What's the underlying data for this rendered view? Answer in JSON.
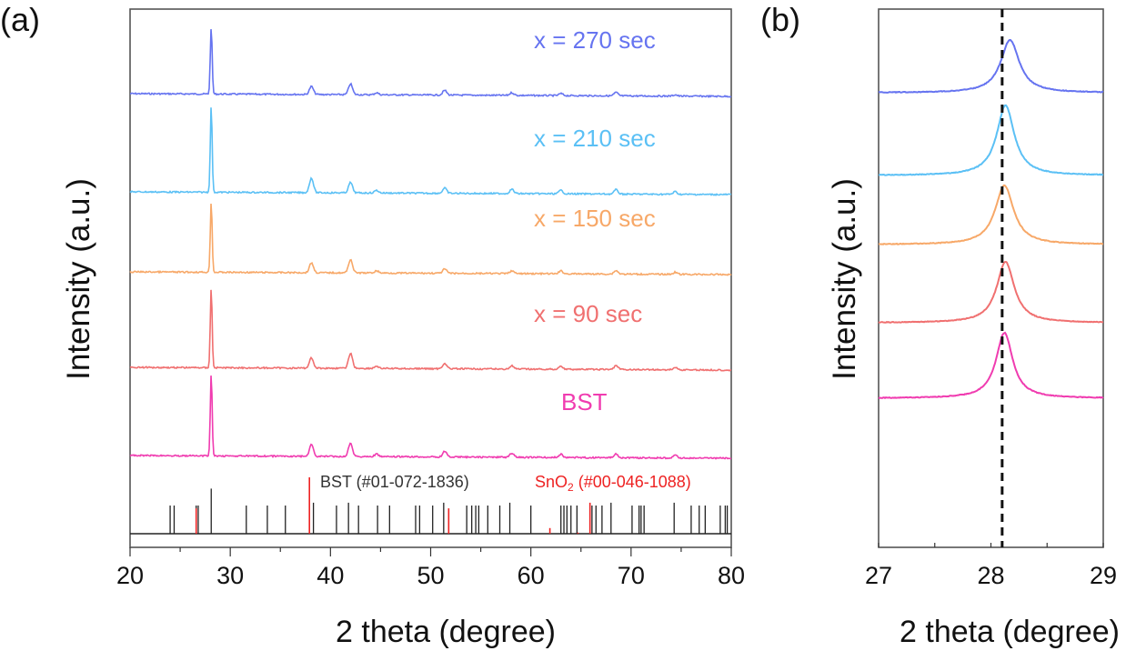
{
  "chart_data": [
    {
      "panel_label": "(a)",
      "type": "line",
      "title": "",
      "xlabel": "2 theta (degree)",
      "ylabel": "Intensity (a.u.)",
      "xlim": [
        20,
        80
      ],
      "xticks": [
        20,
        30,
        40,
        50,
        60,
        70,
        80
      ],
      "grid": false,
      "layout": "stacked-offset",
      "series": [
        {
          "name": "x = 270 sec",
          "color": "#6674f0",
          "peaks": [
            [
              28.1,
              1.0
            ],
            [
              38.1,
              0.12
            ],
            [
              42.0,
              0.16
            ],
            [
              44.6,
              0.03
            ],
            [
              51.4,
              0.07
            ],
            [
              58.1,
              0.04
            ],
            [
              63.0,
              0.03
            ],
            [
              68.5,
              0.05
            ],
            [
              74.4,
              0.02
            ]
          ]
        },
        {
          "name": "x = 210 sec",
          "color": "#5bc0f5",
          "peaks": [
            [
              28.1,
              1.0
            ],
            [
              38.1,
              0.17
            ],
            [
              42.0,
              0.12
            ],
            [
              44.6,
              0.03
            ],
            [
              51.4,
              0.06
            ],
            [
              58.1,
              0.05
            ],
            [
              63.0,
              0.04
            ],
            [
              68.5,
              0.05
            ],
            [
              74.4,
              0.03
            ]
          ]
        },
        {
          "name": "x = 150 sec",
          "color": "#f7a868",
          "peaks": [
            [
              28.1,
              1.0
            ],
            [
              38.1,
              0.14
            ],
            [
              42.0,
              0.19
            ],
            [
              44.6,
              0.03
            ],
            [
              51.4,
              0.06
            ],
            [
              58.1,
              0.04
            ],
            [
              63.0,
              0.04
            ],
            [
              68.5,
              0.05
            ],
            [
              74.4,
              0.03
            ]
          ]
        },
        {
          "name": "x = 90 sec",
          "color": "#f07070",
          "peaks": [
            [
              28.1,
              1.0
            ],
            [
              38.1,
              0.13
            ],
            [
              42.0,
              0.19
            ],
            [
              44.6,
              0.03
            ],
            [
              51.4,
              0.07
            ],
            [
              58.1,
              0.04
            ],
            [
              63.0,
              0.04
            ],
            [
              68.5,
              0.05
            ],
            [
              74.4,
              0.03
            ]
          ]
        },
        {
          "name": "BST",
          "color": "#f03cb0",
          "peaks": [
            [
              28.1,
              1.0
            ],
            [
              38.1,
              0.14
            ],
            [
              42.0,
              0.17
            ],
            [
              44.6,
              0.03
            ],
            [
              51.4,
              0.07
            ],
            [
              58.1,
              0.05
            ],
            [
              63.0,
              0.04
            ],
            [
              68.5,
              0.05
            ],
            [
              74.4,
              0.03
            ]
          ]
        }
      ],
      "reference_patterns": [
        {
          "name": "BST (#01-072-1836)",
          "color": "#222222",
          "lines": [
            [
              24.0,
              0.5
            ],
            [
              24.4,
              0.5
            ],
            [
              26.6,
              0.5
            ],
            [
              26.8,
              0.5
            ],
            [
              28.1,
              0.8
            ],
            [
              31.6,
              0.5
            ],
            [
              33.7,
              0.5
            ],
            [
              35.5,
              0.5
            ],
            [
              38.3,
              0.55
            ],
            [
              40.6,
              0.5
            ],
            [
              41.8,
              0.55
            ],
            [
              42.8,
              0.5
            ],
            [
              44.7,
              0.5
            ],
            [
              45.9,
              0.5
            ],
            [
              48.5,
              0.5
            ],
            [
              48.9,
              0.5
            ],
            [
              50.2,
              0.5
            ],
            [
              51.3,
              0.55
            ],
            [
              53.6,
              0.5
            ],
            [
              54.1,
              0.5
            ],
            [
              54.5,
              0.5
            ],
            [
              54.8,
              0.5
            ],
            [
              55.7,
              0.5
            ],
            [
              56.9,
              0.5
            ],
            [
              57.9,
              0.55
            ],
            [
              60.0,
              0.5
            ],
            [
              63.0,
              0.5
            ],
            [
              63.3,
              0.5
            ],
            [
              63.6,
              0.5
            ],
            [
              64.0,
              0.5
            ],
            [
              64.6,
              0.5
            ],
            [
              66.1,
              0.5
            ],
            [
              66.5,
              0.5
            ],
            [
              67.1,
              0.5
            ],
            [
              68.0,
              0.55
            ],
            [
              70.1,
              0.5
            ],
            [
              70.8,
              0.5
            ],
            [
              71.0,
              0.5
            ],
            [
              71.3,
              0.5
            ],
            [
              74.3,
              0.55
            ],
            [
              76.0,
              0.5
            ],
            [
              76.8,
              0.5
            ],
            [
              77.4,
              0.5
            ],
            [
              78.9,
              0.5
            ],
            [
              79.4,
              0.5
            ],
            [
              79.6,
              0.5
            ]
          ]
        },
        {
          "name": "SnO2 (#00-046-1088)",
          "color": "#ee2222",
          "lines": [
            [
              26.6,
              0.45
            ],
            [
              37.9,
              1.0
            ],
            [
              51.8,
              0.45
            ],
            [
              61.9,
              0.1
            ],
            [
              64.7,
              0.02
            ],
            [
              65.9,
              0.55
            ]
          ]
        }
      ],
      "annotations": [
        "x = 270 sec",
        "x = 210 sec",
        "x = 150 sec",
        "x = 90 sec",
        "BST",
        "BST (#01-072-1836)",
        "SnO2 (#00-046-1088)"
      ]
    },
    {
      "panel_label": "(b)",
      "type": "line",
      "title": "",
      "xlabel": "2 theta (degree)",
      "ylabel": "Intensity (a.u.)",
      "xlim": [
        27,
        29
      ],
      "xticks": [
        27,
        28,
        29
      ],
      "grid": false,
      "reference_line": {
        "x": 28.1,
        "style": "dashed",
        "color": "#111111"
      },
      "series": [
        {
          "name": "x = 270 sec",
          "color": "#6674f0",
          "peak_center": 28.17,
          "fwhm": 0.2
        },
        {
          "name": "x = 210 sec",
          "color": "#5bc0f5",
          "peak_center": 28.13,
          "fwhm": 0.19
        },
        {
          "name": "x = 150 sec",
          "color": "#f7a868",
          "peak_center": 28.12,
          "fwhm": 0.2
        },
        {
          "name": "x = 90 sec",
          "color": "#f07070",
          "peak_center": 28.13,
          "fwhm": 0.19
        },
        {
          "name": "BST",
          "color": "#f03cb0",
          "peak_center": 28.12,
          "fwhm": 0.18
        }
      ]
    }
  ]
}
